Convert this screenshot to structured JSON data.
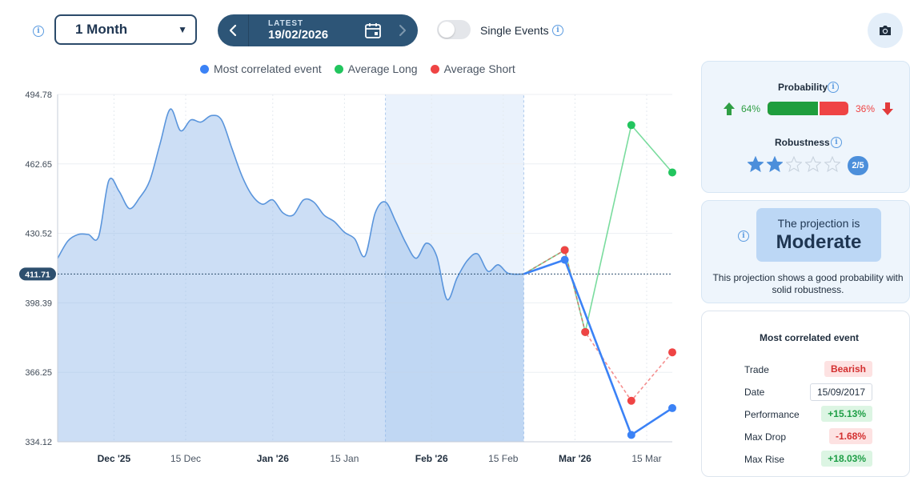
{
  "controls": {
    "period_value": "1 Month",
    "latest_label": "LATEST",
    "latest_date": "19/02/2026",
    "single_events_label": "Single Events",
    "single_events_on": false
  },
  "legend": [
    {
      "label": "Most correlated event",
      "color": "#3b82f6"
    },
    {
      "label": "Average Long",
      "color": "#22c55e"
    },
    {
      "label": "Average Short",
      "color": "#ef4444"
    }
  ],
  "chart_data": {
    "type": "line",
    "y_ticks": [
      "494.78",
      "462.65",
      "430.52",
      "398.39",
      "366.25",
      "334.12"
    ],
    "ylim": [
      334.12,
      494.78
    ],
    "x_tick_labels": [
      {
        "label": "Dec '25",
        "bold": true
      },
      {
        "label": "15 Dec",
        "bold": false
      },
      {
        "label": "Jan '26",
        "bold": true
      },
      {
        "label": "15 Jan",
        "bold": false
      },
      {
        "label": "Feb '26",
        "bold": true
      },
      {
        "label": "15 Feb",
        "bold": false
      },
      {
        "label": "Mar '26",
        "bold": true
      },
      {
        "label": "15 Mar",
        "bold": false
      }
    ],
    "current_value": "411.71",
    "highlight_range": [
      "2026-01-23",
      "2026-02-19"
    ],
    "history": {
      "dates": [
        "2025-11-20",
        "2025-11-22",
        "2025-11-24",
        "2025-11-26",
        "2025-11-28",
        "2025-11-30",
        "2025-12-02",
        "2025-12-04",
        "2025-12-06",
        "2025-12-08",
        "2025-12-10",
        "2025-12-12",
        "2025-12-14",
        "2025-12-16",
        "2025-12-18",
        "2025-12-20",
        "2025-12-22",
        "2025-12-24",
        "2025-12-26",
        "2025-12-28",
        "2025-12-30",
        "2026-01-01",
        "2026-01-03",
        "2026-01-05",
        "2026-01-07",
        "2026-01-09",
        "2026-01-11",
        "2026-01-13",
        "2026-01-15",
        "2026-01-17",
        "2026-01-19",
        "2026-01-21",
        "2026-01-23",
        "2026-01-25",
        "2026-01-27",
        "2026-01-29",
        "2026-01-31",
        "2026-02-02",
        "2026-02-04",
        "2026-02-06",
        "2026-02-08",
        "2026-02-10",
        "2026-02-12",
        "2026-02-14",
        "2026-02-16",
        "2026-02-19"
      ],
      "values": [
        419,
        427,
        430,
        430,
        429,
        455,
        450,
        442,
        447,
        455,
        472,
        488,
        478,
        483,
        482,
        485,
        483,
        470,
        457,
        448,
        444,
        446,
        440,
        439,
        446,
        445,
        439,
        436,
        431,
        428,
        420,
        440,
        445,
        436,
        426,
        419,
        426,
        420,
        400,
        410,
        418,
        421,
        413,
        416,
        412,
        411.71
      ]
    },
    "series": [
      {
        "name": "Most correlated event",
        "color": "#3b82f6",
        "dashed": false,
        "x": [
          "2026-02-19",
          "2026-02-27",
          "2026-03-12",
          "2026-03-20"
        ],
        "values": [
          411.71,
          418.3,
          337.3,
          349.7
        ]
      },
      {
        "name": "Average Long",
        "color": "#22c55e",
        "dashed": false,
        "x": [
          "2026-02-19",
          "2026-02-27",
          "2026-03-03",
          "2026-03-12",
          "2026-03-20"
        ],
        "values": [
          411.71,
          422.8,
          384.9,
          480.6,
          458.7
        ]
      },
      {
        "name": "Average Short",
        "color": "#ef4444",
        "dashed": true,
        "x": [
          "2026-02-19",
          "2026-02-27",
          "2026-03-03",
          "2026-03-12",
          "2026-03-20"
        ],
        "values": [
          411.71,
          422.8,
          384.9,
          353.1,
          375.5
        ]
      }
    ]
  },
  "probability": {
    "title": "Probability",
    "long_pct": "64%",
    "short_pct": "36%",
    "long_fraction": 0.64
  },
  "robustness": {
    "title": "Robustness",
    "score": 2,
    "max": 5,
    "badge": "2/5"
  },
  "projection": {
    "prefix": "The projection is",
    "value": "Moderate",
    "description": "This projection shows a good probability with solid robustness."
  },
  "event_table": {
    "title": "Most correlated event",
    "rows": [
      {
        "label": "Trade",
        "value": "Bearish",
        "style": "red"
      },
      {
        "label": "Date",
        "value": "15/09/2017",
        "style": "neutral"
      },
      {
        "label": "Performance",
        "value": "+15.13%",
        "style": "green"
      },
      {
        "label": "Max Drop",
        "value": "-1.68%",
        "style": "red"
      },
      {
        "label": "Max Rise",
        "value": "+18.03%",
        "style": "green"
      }
    ]
  }
}
